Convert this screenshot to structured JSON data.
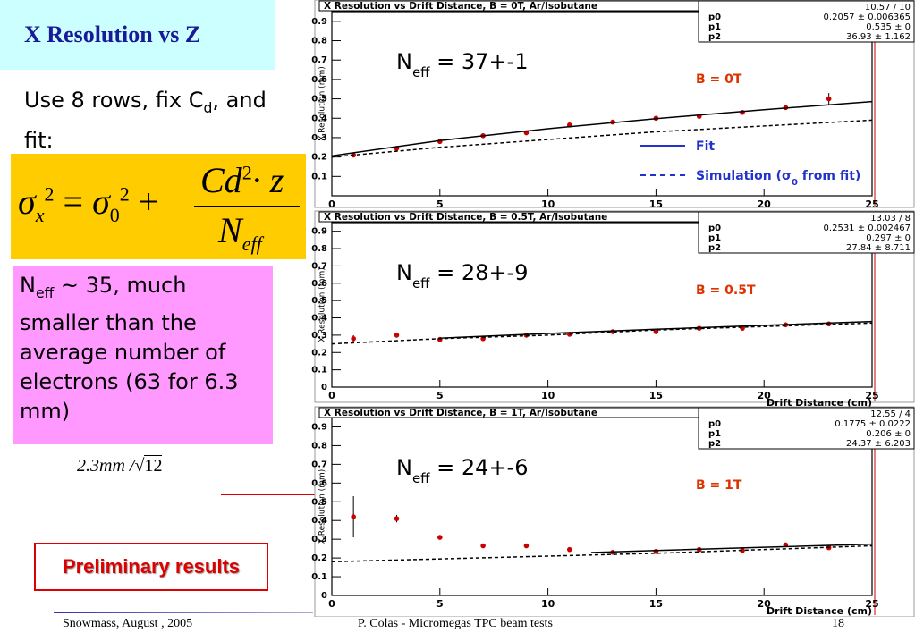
{
  "slide": {
    "title": "X Resolution vs Z",
    "intro": {
      "text": "Use 8 rows, fix C",
      "sub": "d",
      "rest": ", and fit:"
    },
    "formula": {
      "sigma": "σ",
      "x": "x",
      "sq": "2",
      "eq": "=",
      "s0": "0",
      "plus": "+",
      "cd": "Cd",
      "z": "· z",
      "n": "N",
      "eff": "eff"
    },
    "note": {
      "text": "N",
      "sub": "eff",
      "rest": " ~ 35, much smaller than the average number of electrons (63 for 6.3 mm)"
    },
    "resolution": {
      "text": "2.3mm /",
      "radicand": "12"
    },
    "badge": "Preliminary results",
    "footer": {
      "left": "Snowmass,  August , 2005",
      "center": "P. Colas  -  Micromegas TPC beam tests",
      "page": "18"
    }
  },
  "chart_data": [
    {
      "type": "scatter",
      "title": "X Resolution vs Drift Distance, B = 0T, Ar/Isobutane",
      "y_label": "X Resolution (mm)",
      "xlim": [
        0,
        25
      ],
      "ylim": [
        0,
        0.95
      ],
      "xticks": [
        0,
        5,
        10,
        15,
        20,
        25
      ],
      "yticks": [
        0.1,
        0.2,
        0.3,
        0.4,
        0.5,
        0.6,
        0.7,
        0.8,
        0.9
      ],
      "stats": {
        "header": "10.57 / 10",
        "rows": [
          [
            "p0",
            "0.2057 ± 0.006365"
          ],
          [
            "p1",
            "0.535 ±       0"
          ],
          [
            "p2",
            "36.93 ± 1.162"
          ]
        ]
      },
      "annotation": {
        "text": "N",
        "sub": "eff",
        "rest": " = 37+-1"
      },
      "field_label": "B = 0T",
      "legend": true,
      "legend_color": "#2233cc",
      "series": [
        {
          "x": [
            1,
            3,
            5,
            7,
            9,
            11,
            13,
            15,
            17,
            19,
            21,
            23
          ],
          "values": [
            0.21,
            0.245,
            0.28,
            0.31,
            0.325,
            0.365,
            0.38,
            0.4,
            0.41,
            0.43,
            0.455,
            0.5
          ],
          "errors": [
            0.008,
            0.008,
            0.008,
            0.008,
            0.008,
            0.008,
            0.008,
            0.008,
            0.008,
            0.01,
            0.012,
            0.03
          ],
          "color": "#cc0000"
        },
        {
          "name": [
            "Fit"
          ],
          "x": [
            0,
            5,
            10,
            15,
            20,
            25
          ],
          "values": [
            0.206,
            0.285,
            0.346,
            0.398,
            0.444,
            0.486
          ],
          "color": "#000000",
          "dash": false
        },
        {
          "name": [
            "Simulation (σ",
            "0",
            " from fit)"
          ],
          "x": [
            0,
            5,
            10,
            15,
            20,
            25
          ],
          "values": [
            0.2,
            0.25,
            0.29,
            0.33,
            0.36,
            0.39
          ],
          "color": "#000000",
          "dash": true
        }
      ]
    },
    {
      "type": "scatter",
      "title": "X Resolution vs Drift Distance, B = 0.5T, Ar/Isobutane",
      "y_label": "X Resolution (mm)",
      "x_label": "Drift Distance (cm)",
      "xlim": [
        0,
        25
      ],
      "ylim": [
        0,
        0.95
      ],
      "xticks": [
        0,
        5,
        10,
        15,
        20,
        25
      ],
      "yticks": [
        0,
        0.1,
        0.2,
        0.3,
        0.4,
        0.5,
        0.6,
        0.7,
        0.8,
        0.9
      ],
      "stats": {
        "header": "13.03 / 8",
        "rows": [
          [
            "p0",
            "0.2531 ± 0.002467"
          ],
          [
            "p1",
            "0.297 ±       0"
          ],
          [
            "p2",
            "27.84 ± 8.711"
          ]
        ]
      },
      "annotation": {
        "text": "N",
        "sub": "eff",
        "rest": " = 28+-9"
      },
      "field_label": "B = 0.5T",
      "series": [
        {
          "x": [
            1,
            3,
            5,
            7,
            9,
            11,
            13,
            15,
            17,
            19,
            21,
            23
          ],
          "values": [
            0.28,
            0.3,
            0.275,
            0.28,
            0.3,
            0.305,
            0.32,
            0.32,
            0.34,
            0.34,
            0.36,
            0.365
          ],
          "errors": [
            0.02,
            0.008,
            0.006,
            0.006,
            0.006,
            0.006,
            0.006,
            0.006,
            0.006,
            0.006,
            0.006,
            0.006
          ],
          "color": "#cc0000"
        },
        {
          "x": [
            5,
            10,
            15,
            20,
            25
          ],
          "values": [
            0.283,
            0.31,
            0.334,
            0.357,
            0.379
          ],
          "color": "#000000",
          "dash": false
        },
        {
          "x": [
            0,
            5,
            10,
            15,
            20,
            25
          ],
          "values": [
            0.25,
            0.28,
            0.3,
            0.33,
            0.35,
            0.37
          ],
          "color": "#000000",
          "dash": true
        }
      ]
    },
    {
      "type": "scatter",
      "title": "X Resolution vs Drift Distance, B = 1T, Ar/Isobutane",
      "y_label": "X Resolution (mm)",
      "x_label": "Drift Distance (cm)",
      "xlim": [
        0,
        25
      ],
      "ylim": [
        0,
        0.95
      ],
      "xticks": [
        0,
        5,
        10,
        15,
        20,
        25
      ],
      "yticks": [
        0,
        0.1,
        0.2,
        0.3,
        0.4,
        0.5,
        0.6,
        0.7,
        0.8,
        0.9
      ],
      "stats": {
        "header": "12.55 / 4",
        "rows": [
          [
            "p0",
            "0.1775 ± 0.0222"
          ],
          [
            "p1",
            "0.206 ±       0"
          ],
          [
            "p2",
            "24.37 ± 6.203"
          ]
        ]
      },
      "annotation": {
        "text": "N",
        "sub": "eff",
        "rest": " = 24+-6"
      },
      "field_label": "B = 1T",
      "series": [
        {
          "x": [
            1,
            3,
            5,
            7,
            9,
            11,
            13,
            15,
            17,
            19,
            21,
            23
          ],
          "values": [
            0.42,
            0.41,
            0.31,
            0.265,
            0.265,
            0.245,
            0.23,
            0.235,
            0.245,
            0.24,
            0.27,
            0.255
          ],
          "errors": [
            0.11,
            0.02,
            0.01,
            0.01,
            0.008,
            0.006,
            0.006,
            0.006,
            0.006,
            0.006,
            0.006,
            0.006
          ],
          "color": "#cc0000"
        },
        {
          "x": [
            12,
            15,
            20,
            25
          ],
          "values": [
            0.229,
            0.24,
            0.257,
            0.274
          ],
          "color": "#000000",
          "dash": false
        },
        {
          "x": [
            0,
            5,
            10,
            15,
            20,
            25
          ],
          "values": [
            0.18,
            0.195,
            0.21,
            0.225,
            0.245,
            0.265
          ],
          "color": "#000000",
          "dash": true
        }
      ]
    }
  ]
}
